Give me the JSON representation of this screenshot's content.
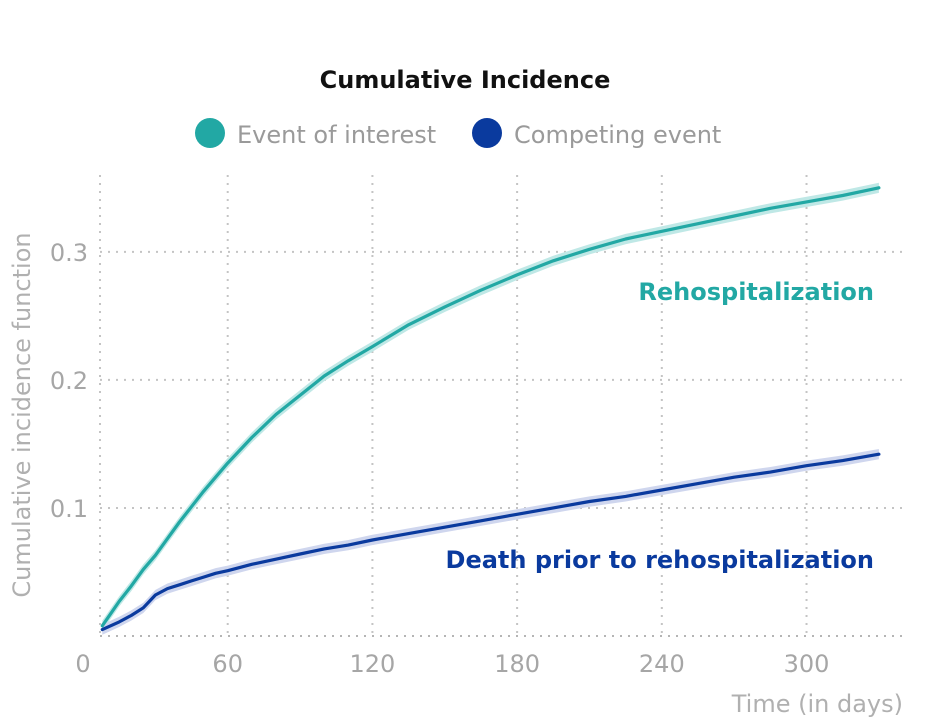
{
  "chart_data": {
    "type": "line",
    "title": "Cumulative Incidence",
    "xlabel": "Time (in days)",
    "ylabel": "Cumulative incidence function",
    "xlim": [
      0,
      340
    ],
    "ylim": [
      0,
      0.36
    ],
    "x_ticks": [
      0,
      60,
      120,
      180,
      240,
      300
    ],
    "y_ticks": [
      0.1,
      0.2,
      0.3
    ],
    "x_tick_labels": [
      "0",
      "60",
      "120",
      "180",
      "240",
      "300"
    ],
    "y_tick_labels": [
      "0.1",
      "0.2",
      "0.3"
    ],
    "grid": true,
    "legend_position": "top",
    "legend": [
      {
        "label": "Event of interest",
        "color": "#22a8a4"
      },
      {
        "label": "Competing event",
        "color": "#0a3a9e"
      }
    ],
    "series": [
      {
        "color": "#22a8a4",
        "band_color": "#bfe8e6",
        "x": [
          8,
          15,
          20,
          25,
          30,
          35,
          40,
          45,
          50,
          55,
          60,
          70,
          80,
          90,
          100,
          110,
          120,
          135,
          150,
          165,
          180,
          195,
          210,
          225,
          240,
          255,
          270,
          285,
          300,
          315,
          330
        ],
        "y": [
          0.008,
          0.027,
          0.039,
          0.052,
          0.063,
          0.076,
          0.089,
          0.101,
          0.113,
          0.124,
          0.135,
          0.155,
          0.173,
          0.188,
          0.203,
          0.215,
          0.226,
          0.243,
          0.257,
          0.27,
          0.282,
          0.293,
          0.302,
          0.31,
          0.316,
          0.322,
          0.328,
          0.334,
          0.339,
          0.344,
          0.35
        ],
        "band": 0.004,
        "annotation": "Rehospitalization"
      },
      {
        "color": "#0a3a9e",
        "band_color": "#cfd6ee",
        "x": [
          8,
          15,
          20,
          25,
          30,
          35,
          40,
          45,
          50,
          55,
          60,
          70,
          80,
          90,
          100,
          110,
          120,
          135,
          150,
          165,
          180,
          195,
          210,
          225,
          240,
          255,
          270,
          285,
          300,
          315,
          330
        ],
        "y": [
          0.005,
          0.011,
          0.016,
          0.022,
          0.032,
          0.037,
          0.04,
          0.043,
          0.046,
          0.049,
          0.051,
          0.056,
          0.06,
          0.064,
          0.068,
          0.071,
          0.075,
          0.08,
          0.085,
          0.09,
          0.095,
          0.1,
          0.105,
          0.109,
          0.114,
          0.119,
          0.124,
          0.128,
          0.133,
          0.137,
          0.142
        ],
        "band": 0.004,
        "annotation": "Death prior to rehospitalization"
      }
    ]
  }
}
